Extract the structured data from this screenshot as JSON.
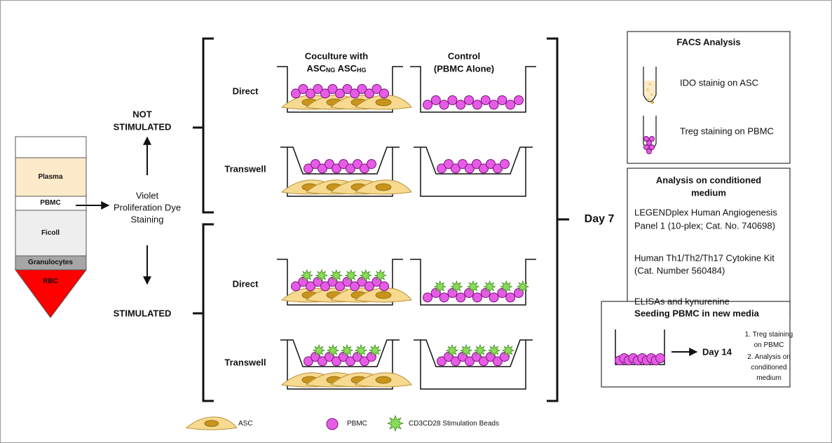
{
  "tube": {
    "layers": [
      "Plasma",
      "PBMC",
      "Ficoll",
      "Granulocytes",
      "RBC"
    ]
  },
  "staining": {
    "lines": [
      "Violet",
      "Proliferation Dye",
      "Staining"
    ]
  },
  "conditions": {
    "not_stimulated": [
      "NOT",
      "STIMULATED"
    ],
    "stimulated": "STIMULATED"
  },
  "columns": {
    "coculture": {
      "line1": "Coculture with",
      "asc1": "ASC",
      "sub1": "NG",
      "asc2": "ASC",
      "sub2": "HG"
    },
    "control": [
      "Control",
      "(PBMC Alone)"
    ]
  },
  "rows": [
    "Direct",
    "Transwell",
    "Direct",
    "Transwell"
  ],
  "day7": "Day 7",
  "facs": {
    "title": "FACS Analysis",
    "items": [
      "IDO stainig on ASC",
      "Treg staining on PBMC"
    ]
  },
  "conditioned": {
    "title": [
      "Analysis on conditioned",
      "medium"
    ],
    "items": [
      [
        "LEGENDplex Human Angiogenesis",
        "Panel 1 (10-plex; Cat. No. 740698)"
      ],
      [
        "Human Th1/Th2/Th17  Cytokine Kit",
        "(Cat. Number 560484)"
      ],
      [
        "ELISAs and kynurenine"
      ]
    ]
  },
  "seeding": {
    "title": "Seeding PBMC in new media",
    "day": "Day 14",
    "steps": [
      [
        "Treg staining",
        "on PBMC"
      ],
      [
        "Analysis on",
        "conditioned",
        "medium"
      ]
    ]
  },
  "legend": [
    "ASC",
    "PBMC",
    "CD3CD28 Stimulation Beads"
  ]
}
